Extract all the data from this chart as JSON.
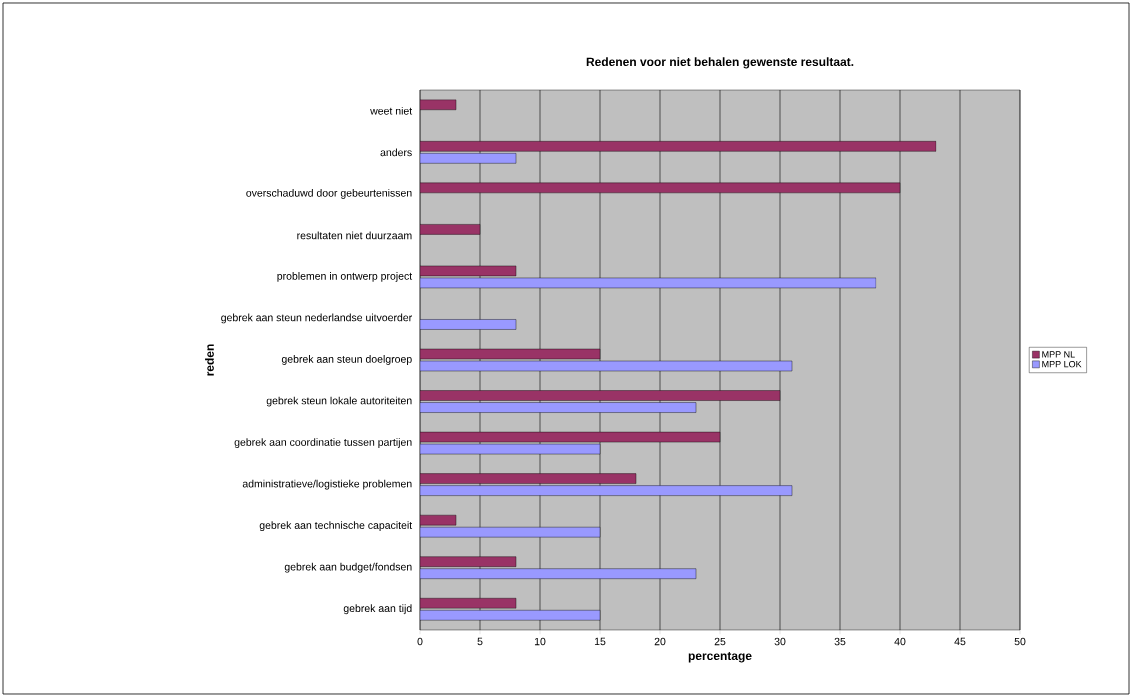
{
  "chart_data": {
    "type": "bar",
    "orientation": "horizontal",
    "title": "Redenen voor niet behalen gewenste resultaat.",
    "xlabel": "percentage",
    "ylabel": "reden",
    "categories": [
      "weet niet",
      "anders",
      "overschaduwd door gebeurtenissen",
      "resultaten niet duurzaam",
      "problemen in ontwerp project",
      "gebrek aan steun nederlandse uitvoerder",
      "gebrek aan steun doelgroep",
      "gebrek steun lokale autoriteiten",
      "gebrek aan coordinatie tussen partijen",
      "administratieve/logistieke problemen",
      "gebrek aan technische capaciteit",
      "gebrek aan budget/fondsen",
      "gebrek aan tijd"
    ],
    "series": [
      {
        "name": "MPP NL",
        "color": "#993366",
        "values": [
          3,
          43,
          40,
          5,
          8,
          null,
          15,
          30,
          25,
          18,
          3,
          8,
          8
        ]
      },
      {
        "name": "MPP LOK",
        "color": "#9999ff",
        "values": [
          null,
          8,
          null,
          null,
          38,
          8,
          31,
          23,
          15,
          31,
          15,
          23,
          15
        ]
      }
    ],
    "xlim": [
      0,
      50
    ],
    "xticks": [
      0,
      5,
      10,
      15,
      20,
      25,
      30,
      35,
      40,
      45,
      50
    ],
    "grid": "x",
    "legend": "right"
  }
}
